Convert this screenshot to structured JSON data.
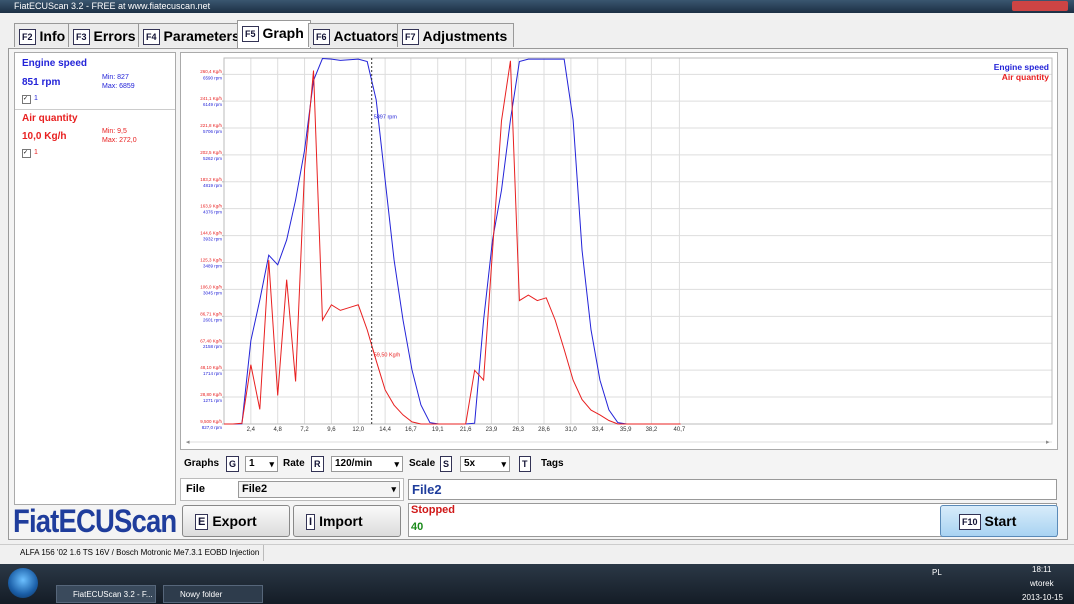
{
  "window_title": "FiatECUScan 3.2 - FREE at www.fiatecuscan.net",
  "tabs": [
    {
      "key": "F2",
      "label": "Info"
    },
    {
      "key": "F3",
      "label": "Errors"
    },
    {
      "key": "F4",
      "label": "Parameters"
    },
    {
      "key": "F5",
      "label": "Graph"
    },
    {
      "key": "F6",
      "label": "Actuators"
    },
    {
      "key": "F7",
      "label": "Adjustments"
    }
  ],
  "sensors": [
    {
      "name": "Engine speed",
      "value": "851 rpm",
      "min": "Min: 827",
      "max": "Max: 6859",
      "check": "1"
    },
    {
      "name": "Air quantity",
      "value": "10,0 Kg/h",
      "min": "Min: 9,5",
      "max": "Max: 272,0",
      "check": "1"
    }
  ],
  "logo": "FiatECUScan",
  "chart_data": {
    "type": "line",
    "x": [
      0,
      0.8,
      1.6,
      2.4,
      3.2,
      4.0,
      4.8,
      5.6,
      6.4,
      7.2,
      8.0,
      8.8,
      9.6,
      10.4,
      11.2,
      12.0,
      12.8,
      13.6,
      14.4,
      15.2,
      16.0,
      16.8,
      17.6,
      18.4,
      19.2,
      20.0,
      20.8,
      21.6,
      22.4,
      23.2,
      24.0,
      24.8,
      25.6,
      26.4,
      27.2,
      28.0,
      28.8,
      29.6,
      30.4,
      31.2,
      32.0,
      32.8,
      33.6,
      34.4,
      35.2,
      36.0,
      36.8,
      37.6,
      38.4,
      39.2,
      40.0,
      40.8
    ],
    "xlim": [
      0,
      74
    ],
    "xticks": [
      {
        "value": 2.4,
        "label": "2,4"
      },
      {
        "value": 4.8,
        "label": "4,8"
      },
      {
        "value": 7.2,
        "label": "7,2"
      },
      {
        "value": 9.6,
        "label": "9,6"
      },
      {
        "value": 12.0,
        "label": "12,0"
      },
      {
        "value": 14.4,
        "label": "14,4"
      },
      {
        "value": 16.7,
        "label": "16,7"
      },
      {
        "value": 19.1,
        "label": "19,1"
      },
      {
        "value": 21.6,
        "label": "21,6"
      },
      {
        "value": 23.9,
        "label": "23,9"
      },
      {
        "value": 26.3,
        "label": "26,3"
      },
      {
        "value": 28.6,
        "label": "28,6"
      },
      {
        "value": 31.0,
        "label": "31,0"
      },
      {
        "value": 33.4,
        "label": "33,4"
      },
      {
        "value": 35.9,
        "label": "35,9"
      },
      {
        "value": 38.2,
        "label": "38,2"
      },
      {
        "value": 40.7,
        "label": "40,7"
      }
    ],
    "ylim": [
      827,
      6859
    ],
    "yticks": [
      {
        "value": 827,
        "label": "827,0 rpm"
      },
      {
        "value": 1271,
        "label": "1271 rpm"
      },
      {
        "value": 1714,
        "label": "1714 rpm"
      },
      {
        "value": 2158,
        "label": "2158 rpm"
      },
      {
        "value": 2601,
        "label": "2601 rpm"
      },
      {
        "value": 3045,
        "label": "3045 rpm"
      },
      {
        "value": 3489,
        "label": "3489 rpm"
      },
      {
        "value": 3932,
        "label": "3932 rpm"
      },
      {
        "value": 4376,
        "label": "4376 rpm"
      },
      {
        "value": 4819,
        "label": "4819 rpm"
      },
      {
        "value": 5262,
        "label": "5262 rpm"
      },
      {
        "value": 5706,
        "label": "5706 rpm"
      },
      {
        "value": 6149,
        "label": "6149 rpm"
      },
      {
        "value": 6590,
        "label": "6590 rpm"
      }
    ],
    "y2lim": [
      9.5,
      272.0
    ],
    "y2ticks": [
      {
        "value": 9.5,
        "label": "9,500 Kg/h"
      },
      {
        "value": 28.8,
        "label": "28,80 Kg/h"
      },
      {
        "value": 48.1,
        "label": "48,10 Kg/h"
      },
      {
        "value": 67.4,
        "label": "67,40 Kg/h"
      },
      {
        "value": 86.71,
        "label": "86,71 Kg/h"
      },
      {
        "value": 106.0,
        "label": "106,0 Kg/h"
      },
      {
        "value": 125.3,
        "label": "125,3 Kg/h"
      },
      {
        "value": 144.6,
        "label": "144,6 Kg/h"
      },
      {
        "value": 163.9,
        "label": "163,9 Kg/h"
      },
      {
        "value": 183.2,
        "label": "183,2 Kg/h"
      },
      {
        "value": 202.5,
        "label": "202,5 Kg/h"
      },
      {
        "value": 221.8,
        "label": "221,8 Kg/h"
      },
      {
        "value": 241.1,
        "label": "241,1 Kg/h"
      },
      {
        "value": 260.4,
        "label": "260,4 Kg/h"
      }
    ],
    "grid": true,
    "legend": "top-right",
    "series": [
      {
        "name": "Engine speed",
        "color": "#2323d8",
        "values": [
          827,
          827,
          830,
          2200,
          2870,
          3610,
          3450,
          3860,
          4520,
          5340,
          6490,
          6850,
          6840,
          6820,
          6830,
          6840,
          6800,
          6170,
          4850,
          3530,
          2540,
          1720,
          1140,
          850,
          827,
          827,
          827,
          827,
          840,
          2540,
          3860,
          4680,
          5840,
          6800,
          6840,
          6840,
          6840,
          6840,
          6840,
          5840,
          3690,
          2380,
          1550,
          1060,
          850,
          827,
          827,
          827,
          827,
          827,
          827,
          827
        ]
      },
      {
        "name": "Air quantity",
        "color": "#e82020",
        "axis": "y2",
        "values": [
          9.5,
          9.5,
          10,
          52,
          20,
          127,
          30,
          113,
          40,
          192,
          263,
          84,
          95,
          91,
          93,
          95,
          77,
          55,
          34,
          23,
          16,
          11,
          9.5,
          9.5,
          9.5,
          9.5,
          9.5,
          9.5,
          48,
          41,
          134,
          227,
          270,
          98,
          102,
          98,
          100,
          84,
          63,
          41,
          27,
          19.5,
          16,
          12,
          9.5,
          9.5,
          9.5,
          9.5,
          9.5,
          9.5,
          9.5,
          9.5
        ]
      }
    ],
    "cursor": {
      "x": 13.2,
      "labels": [
        {
          "value": 5897,
          "label": "5897 rpm"
        },
        {
          "value": 59.5,
          "label": "59,50 Kg/h"
        }
      ]
    }
  },
  "controls": {
    "graphs": "Graphs",
    "graphs_key": "G",
    "graphs_value": "1",
    "rate": "Rate",
    "rate_key": "R",
    "rate_value": "120/min",
    "scale": "Scale",
    "scale_key": "S",
    "scale_value": "5x",
    "tags_key": "T",
    "tags": "Tags"
  },
  "file": {
    "label": "File",
    "select": "File2",
    "name": "File2",
    "state": "Stopped",
    "count": "40"
  },
  "buttons": {
    "export_key": "E",
    "export": "Export",
    "import_key": "I",
    "import": "Import",
    "start_key": "F10",
    "start": "Start"
  },
  "status_bar": "ALFA 156 '02 1.6 TS 16V / Bosch Motronic Me7.3.1 EOBD Injection",
  "taskbar": {
    "items": [
      "FiatECUScan 3.2 - F...",
      "Nowy folder"
    ],
    "lang": "PL",
    "time": "18:11",
    "day": "wtorek",
    "date": "2013-10-15"
  }
}
